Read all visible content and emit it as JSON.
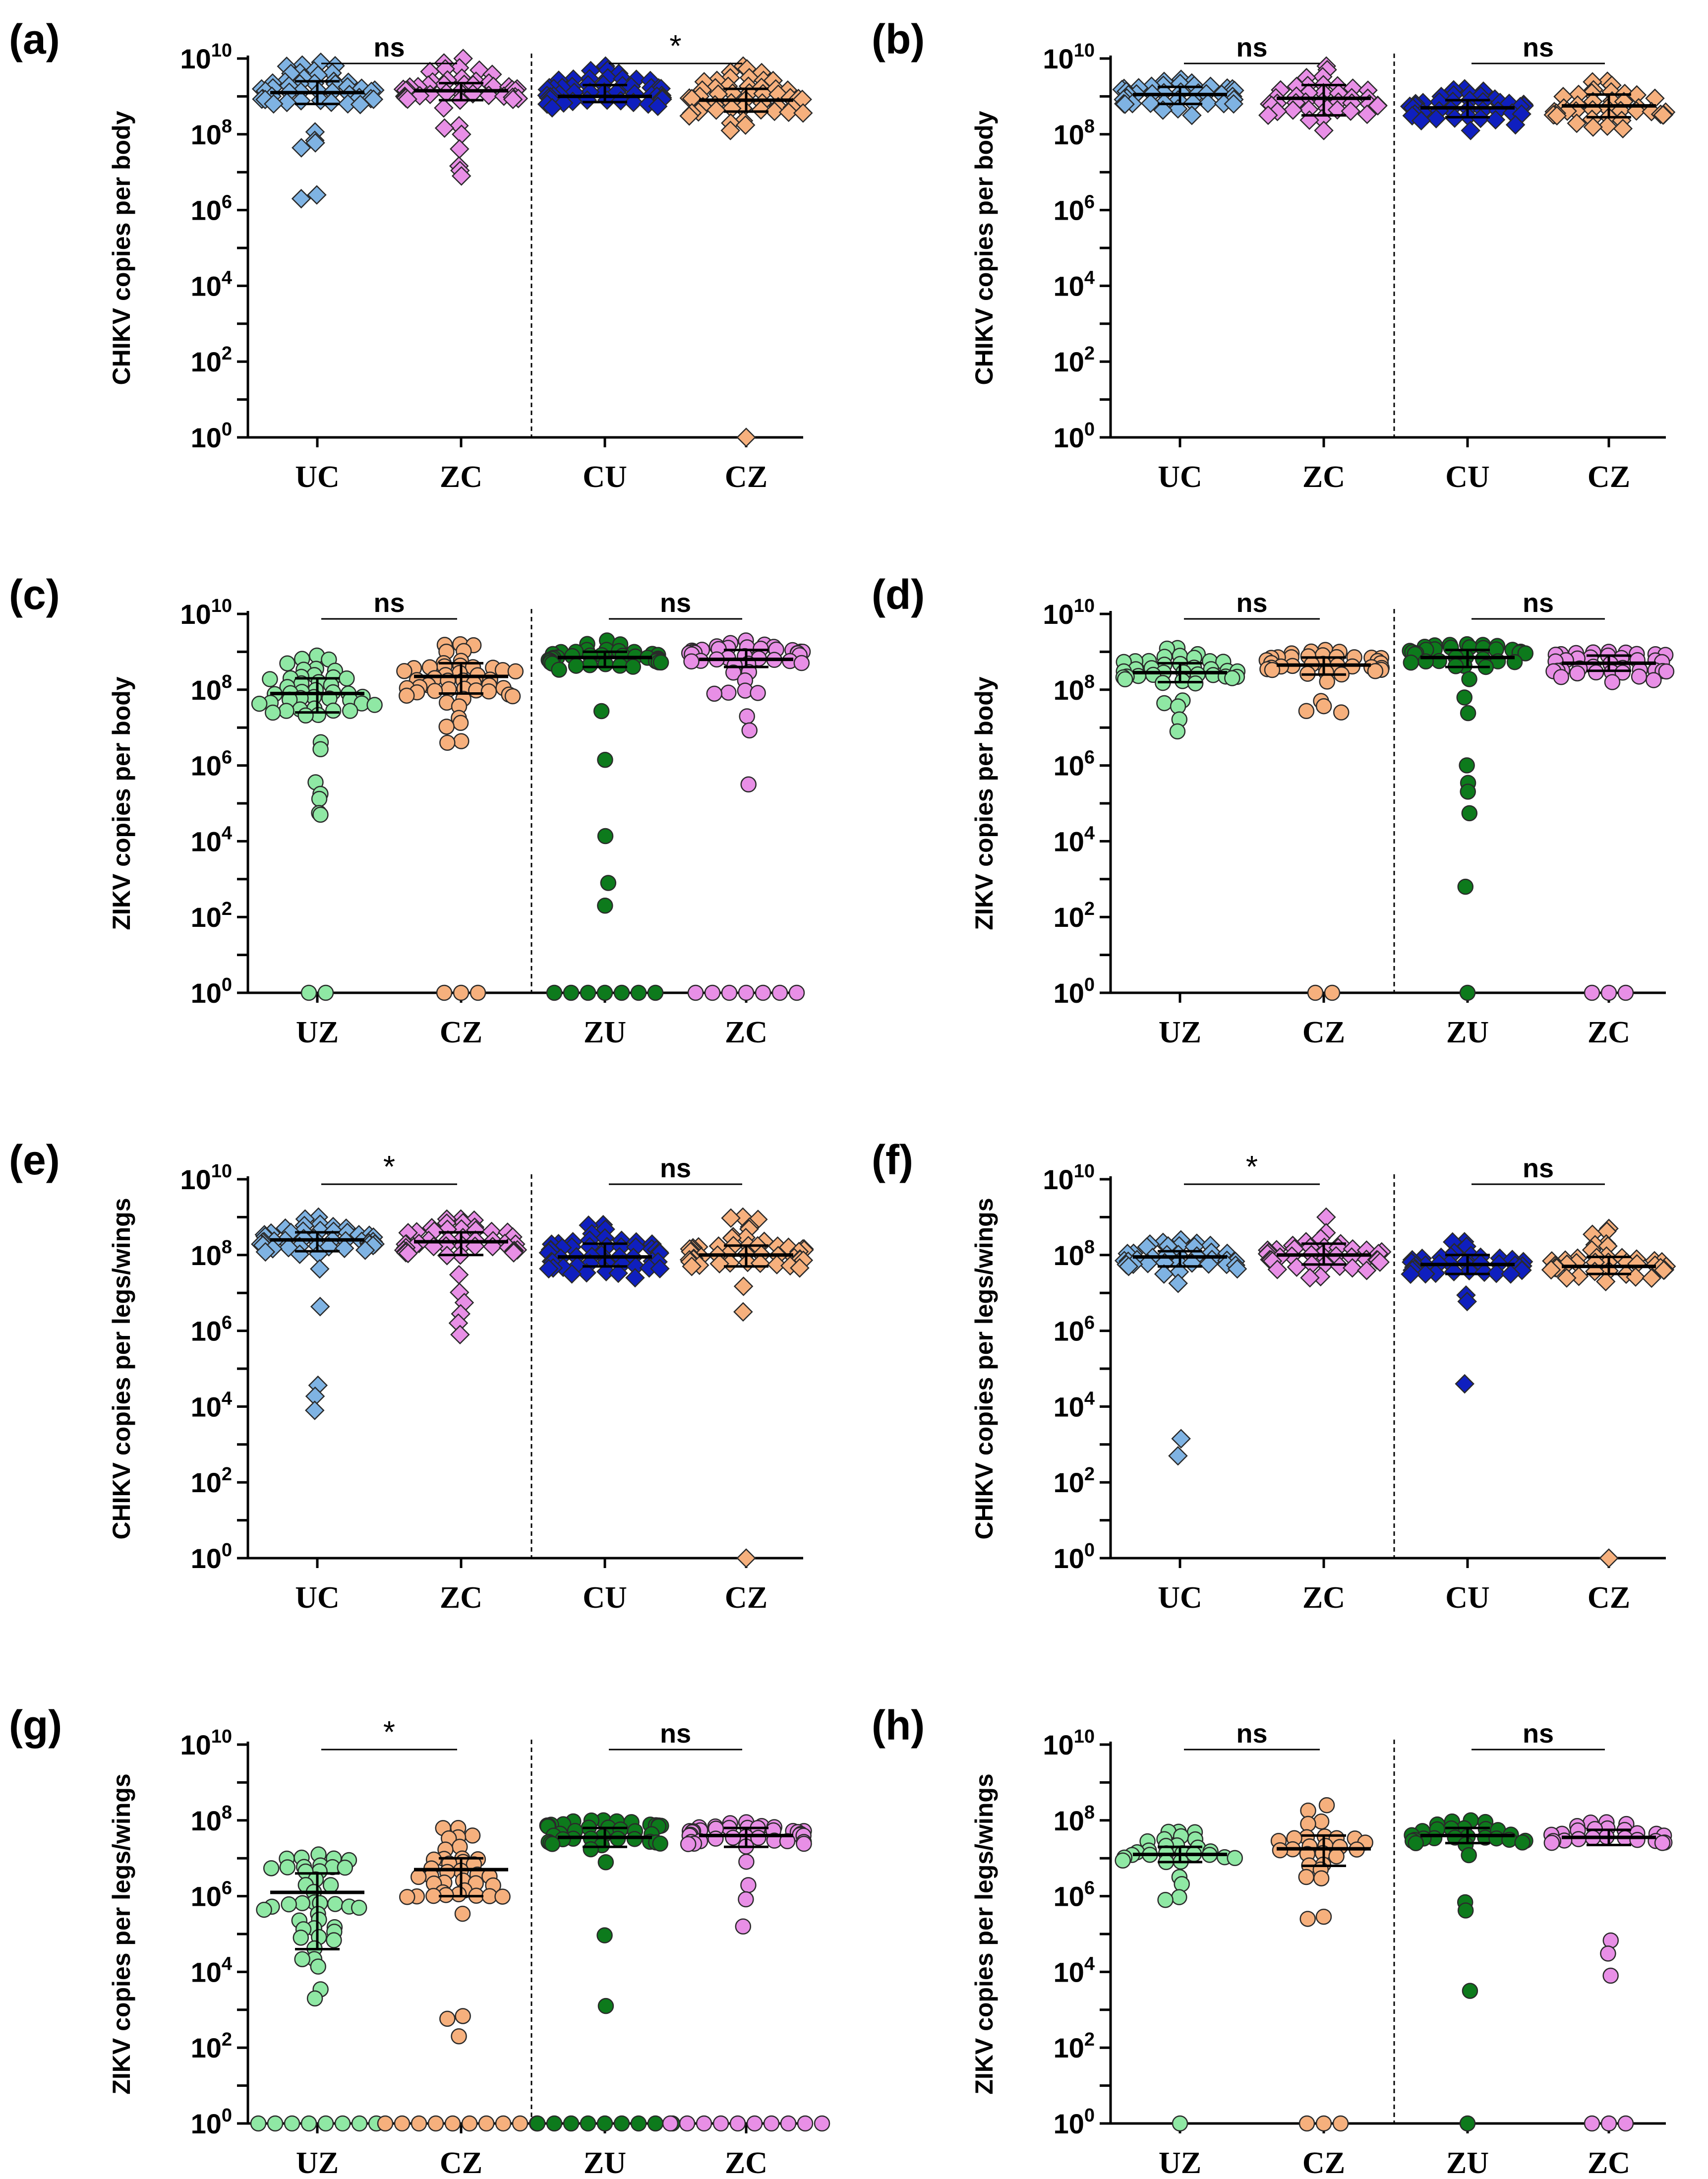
{
  "colors": {
    "light_blue": "#7fb3e3",
    "pink": "#e88fe6",
    "dark_blue": "#0f1fbf",
    "orange": "#f6b07d",
    "light_green": "#8fe8a4",
    "dark_green": "#0d7a1c"
  },
  "chart_data": [
    {
      "panel": "(a)",
      "type": "scatter",
      "scale": "log10",
      "ylabel": "CHIKV copies per body",
      "ylim_exp": [
        0,
        10
      ],
      "yticks_exp": [
        0,
        2,
        4,
        6,
        8,
        10
      ],
      "marker": "diamond",
      "groups": [
        {
          "label": "UC",
          "color": "light_blue",
          "median_exp": 9.1,
          "iqr_exp": [
            8.8,
            9.4
          ],
          "min_exp": 6.3,
          "max_exp": 9.9,
          "n": 50
        },
        {
          "label": "ZC",
          "color": "pink",
          "median_exp": 9.15,
          "iqr_exp": [
            8.9,
            9.35
          ],
          "min_exp": 6.9,
          "max_exp": 10.0,
          "n": 50
        },
        {
          "label": "CU",
          "color": "dark_blue",
          "median_exp": 9.0,
          "iqr_exp": [
            8.85,
            9.3
          ],
          "min_exp": 8.7,
          "max_exp": 9.8,
          "n": 50
        },
        {
          "label": "CZ",
          "color": "orange",
          "median_exp": 8.9,
          "iqr_exp": [
            8.6,
            9.2
          ],
          "min_exp": 8.1,
          "max_exp": 9.8,
          "n": 50,
          "zeros": 1
        }
      ],
      "comparisons": [
        {
          "groups": [
            "UC",
            "ZC"
          ],
          "label": "ns"
        },
        {
          "groups": [
            "CU",
            "CZ"
          ],
          "label": "*"
        }
      ]
    },
    {
      "panel": "(b)",
      "type": "scatter",
      "scale": "log10",
      "ylabel": "CHIKV copies per body",
      "ylim_exp": [
        0,
        10
      ],
      "yticks_exp": [
        0,
        2,
        4,
        6,
        8,
        10
      ],
      "marker": "diamond",
      "groups": [
        {
          "label": "UC",
          "color": "light_blue",
          "median_exp": 9.05,
          "iqr_exp": [
            8.8,
            9.25
          ],
          "min_exp": 8.5,
          "max_exp": 9.45,
          "n": 40
        },
        {
          "label": "ZC",
          "color": "pink",
          "median_exp": 8.95,
          "iqr_exp": [
            8.5,
            9.3
          ],
          "min_exp": 8.1,
          "max_exp": 9.8,
          "n": 40
        },
        {
          "label": "CU",
          "color": "dark_blue",
          "median_exp": 8.7,
          "iqr_exp": [
            8.45,
            8.9
          ],
          "min_exp": 8.1,
          "max_exp": 9.2,
          "n": 40
        },
        {
          "label": "CZ",
          "color": "orange",
          "median_exp": 8.75,
          "iqr_exp": [
            8.45,
            9.05
          ],
          "min_exp": 8.15,
          "max_exp": 9.4,
          "n": 40
        }
      ],
      "comparisons": [
        {
          "groups": [
            "UC",
            "ZC"
          ],
          "label": "ns"
        },
        {
          "groups": [
            "CU",
            "CZ"
          ],
          "label": "ns"
        }
      ]
    },
    {
      "panel": "(c)",
      "type": "scatter",
      "scale": "log10",
      "ylabel": "ZIKV copies per body",
      "ylim_exp": [
        0,
        10
      ],
      "yticks_exp": [
        0,
        2,
        4,
        6,
        8,
        10
      ],
      "marker": "circle",
      "groups": [
        {
          "label": "UZ",
          "color": "light_green",
          "median_exp": 7.9,
          "iqr_exp": [
            7.4,
            8.3
          ],
          "min_exp": 4.7,
          "max_exp": 8.9,
          "n": 50,
          "zeros": 2
        },
        {
          "label": "CZ",
          "color": "orange",
          "median_exp": 8.35,
          "iqr_exp": [
            7.9,
            8.7
          ],
          "min_exp": 6.6,
          "max_exp": 9.2,
          "n": 50,
          "zeros": 3
        },
        {
          "label": "ZU",
          "color": "dark_green",
          "median_exp": 8.85,
          "iqr_exp": [
            8.6,
            9.0
          ],
          "min_exp": 2.3,
          "max_exp": 9.3,
          "n": 50,
          "zeros": 7
        },
        {
          "label": "ZC",
          "color": "pink",
          "median_exp": 8.8,
          "iqr_exp": [
            8.6,
            9.05
          ],
          "min_exp": 5.5,
          "max_exp": 9.3,
          "n": 50,
          "zeros": 7
        }
      ],
      "comparisons": [
        {
          "groups": [
            "UZ",
            "CZ"
          ],
          "label": "ns"
        },
        {
          "groups": [
            "ZU",
            "ZC"
          ],
          "label": "ns"
        }
      ]
    },
    {
      "panel": "(d)",
      "type": "scatter",
      "scale": "log10",
      "ylabel": "ZIKV copies per body",
      "ylim_exp": [
        0,
        10
      ],
      "yticks_exp": [
        0,
        2,
        4,
        6,
        8,
        10
      ],
      "marker": "circle",
      "groups": [
        {
          "label": "UZ",
          "color": "light_green",
          "median_exp": 8.45,
          "iqr_exp": [
            8.2,
            8.7
          ],
          "min_exp": 6.9,
          "max_exp": 9.1,
          "n": 40
        },
        {
          "label": "CZ",
          "color": "orange",
          "median_exp": 8.65,
          "iqr_exp": [
            8.4,
            8.85
          ],
          "min_exp": 7.4,
          "max_exp": 9.05,
          "n": 40,
          "zeros": 2
        },
        {
          "label": "ZU",
          "color": "dark_green",
          "median_exp": 8.85,
          "iqr_exp": [
            8.6,
            9.05
          ],
          "min_exp": 2.8,
          "max_exp": 9.2,
          "n": 40,
          "zeros": 1
        },
        {
          "label": "ZC",
          "color": "pink",
          "median_exp": 8.7,
          "iqr_exp": [
            8.5,
            8.9
          ],
          "min_exp": 8.2,
          "max_exp": 9.0,
          "n": 40,
          "zeros": 3
        }
      ],
      "comparisons": [
        {
          "groups": [
            "UZ",
            "CZ"
          ],
          "label": "ns"
        },
        {
          "groups": [
            "ZU",
            "ZC"
          ],
          "label": "ns"
        }
      ]
    },
    {
      "panel": "(e)",
      "type": "scatter",
      "scale": "log10",
      "ylabel": "CHIKV copies per legs/wings",
      "ylim_exp": [
        0,
        10
      ],
      "yticks_exp": [
        0,
        2,
        4,
        6,
        8,
        10
      ],
      "marker": "diamond",
      "groups": [
        {
          "label": "UC",
          "color": "light_blue",
          "median_exp": 8.4,
          "iqr_exp": [
            8.1,
            8.6
          ],
          "min_exp": 3.9,
          "max_exp": 9.0,
          "n": 50
        },
        {
          "label": "ZC",
          "color": "pink",
          "median_exp": 8.35,
          "iqr_exp": [
            8.0,
            8.6
          ],
          "min_exp": 5.9,
          "max_exp": 8.95,
          "n": 50
        },
        {
          "label": "CU",
          "color": "dark_blue",
          "median_exp": 7.95,
          "iqr_exp": [
            7.7,
            8.3
          ],
          "min_exp": 7.4,
          "max_exp": 8.8,
          "n": 50
        },
        {
          "label": "CZ",
          "color": "orange",
          "median_exp": 8.0,
          "iqr_exp": [
            7.7,
            8.25
          ],
          "min_exp": 6.5,
          "max_exp": 9.0,
          "n": 50,
          "zeros": 1
        }
      ],
      "comparisons": [
        {
          "groups": [
            "UC",
            "ZC"
          ],
          "label": "*"
        },
        {
          "groups": [
            "CU",
            "CZ"
          ],
          "label": "ns"
        }
      ]
    },
    {
      "panel": "(f)",
      "type": "scatter",
      "scale": "log10",
      "ylabel": "CHIKV copies per legs/wings",
      "ylim_exp": [
        0,
        10
      ],
      "yticks_exp": [
        0,
        2,
        4,
        6,
        8,
        10
      ],
      "marker": "diamond",
      "groups": [
        {
          "label": "UC",
          "color": "light_blue",
          "median_exp": 7.95,
          "iqr_exp": [
            7.7,
            8.1
          ],
          "min_exp": 2.7,
          "max_exp": 8.4,
          "n": 40
        },
        {
          "label": "ZC",
          "color": "pink",
          "median_exp": 8.0,
          "iqr_exp": [
            7.75,
            8.3
          ],
          "min_exp": 7.4,
          "max_exp": 9.0,
          "n": 40
        },
        {
          "label": "CU",
          "color": "dark_blue",
          "median_exp": 7.75,
          "iqr_exp": [
            7.5,
            8.0
          ],
          "min_exp": 4.6,
          "max_exp": 8.35,
          "n": 40
        },
        {
          "label": "CZ",
          "color": "orange",
          "median_exp": 7.7,
          "iqr_exp": [
            7.5,
            7.95
          ],
          "min_exp": 7.3,
          "max_exp": 8.7,
          "n": 40,
          "zeros": 1
        }
      ],
      "comparisons": [
        {
          "groups": [
            "UC",
            "ZC"
          ],
          "label": "*"
        },
        {
          "groups": [
            "CU",
            "CZ"
          ],
          "label": "ns"
        }
      ]
    },
    {
      "panel": "(g)",
      "type": "scatter",
      "scale": "log10",
      "ylabel": "ZIKV copies per legs/wings",
      "ylim_exp": [
        0,
        10
      ],
      "yticks_exp": [
        0,
        2,
        4,
        6,
        8,
        10
      ],
      "marker": "circle",
      "groups": [
        {
          "label": "UZ",
          "color": "light_green",
          "median_exp": 6.1,
          "iqr_exp": [
            4.6,
            6.6
          ],
          "min_exp": 3.3,
          "max_exp": 7.1,
          "n": 50,
          "zeros": 8
        },
        {
          "label": "CZ",
          "color": "orange",
          "median_exp": 6.7,
          "iqr_exp": [
            6.0,
            7.0
          ],
          "min_exp": 2.3,
          "max_exp": 7.8,
          "n": 50,
          "zeros": 10
        },
        {
          "label": "ZU",
          "color": "dark_green",
          "median_exp": 7.55,
          "iqr_exp": [
            7.3,
            7.8
          ],
          "min_exp": 3.1,
          "max_exp": 8.0,
          "n": 50,
          "zeros": 9
        },
        {
          "label": "ZC",
          "color": "pink",
          "median_exp": 7.6,
          "iqr_exp": [
            7.3,
            7.8
          ],
          "min_exp": 5.2,
          "max_exp": 7.95,
          "n": 50,
          "zeros": 10
        }
      ],
      "comparisons": [
        {
          "groups": [
            "UZ",
            "CZ"
          ],
          "label": "*"
        },
        {
          "groups": [
            "ZU",
            "ZC"
          ],
          "label": "ns"
        }
      ]
    },
    {
      "panel": "(h)",
      "type": "scatter",
      "scale": "log10",
      "ylabel": "ZIKV copies per legs/wings",
      "ylim_exp": [
        0,
        10
      ],
      "yticks_exp": [
        0,
        2,
        4,
        6,
        8,
        10
      ],
      "marker": "circle",
      "groups": [
        {
          "label": "UZ",
          "color": "light_green",
          "median_exp": 7.1,
          "iqr_exp": [
            6.9,
            7.3
          ],
          "min_exp": 5.9,
          "max_exp": 7.7,
          "n": 30,
          "zeros": 1
        },
        {
          "label": "CZ",
          "color": "orange",
          "median_exp": 7.25,
          "iqr_exp": [
            6.8,
            7.6
          ],
          "min_exp": 5.4,
          "max_exp": 8.4,
          "n": 30,
          "zeros": 3
        },
        {
          "label": "ZU",
          "color": "dark_green",
          "median_exp": 7.6,
          "iqr_exp": [
            7.4,
            7.8
          ],
          "min_exp": 3.5,
          "max_exp": 8.0,
          "n": 30,
          "zeros": 1
        },
        {
          "label": "ZC",
          "color": "pink",
          "median_exp": 7.55,
          "iqr_exp": [
            7.35,
            7.75
          ],
          "min_exp": 3.9,
          "max_exp": 7.95,
          "n": 30,
          "zeros": 3
        }
      ],
      "comparisons": [
        {
          "groups": [
            "UZ",
            "CZ"
          ],
          "label": "ns"
        },
        {
          "groups": [
            "ZU",
            "ZC"
          ],
          "label": "ns"
        }
      ]
    }
  ]
}
